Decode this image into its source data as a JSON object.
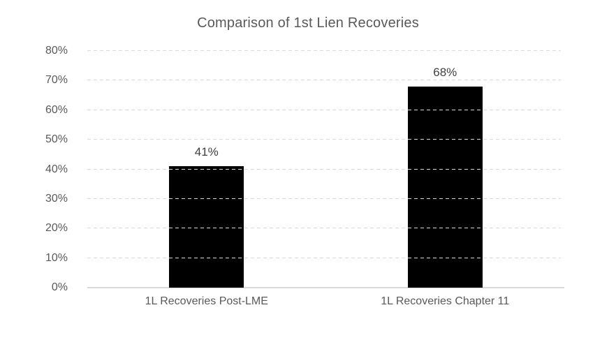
{
  "title": "Comparison of 1st Lien Recoveries",
  "colors": {
    "background": "#ffffff",
    "bar": "#000000",
    "title_text": "#595959",
    "axis_label_text": "#595959",
    "data_label_text": "#404040",
    "gridline": "#d9d9d9",
    "axis_line": "#d9d9d9"
  },
  "chart_data": {
    "type": "bar",
    "title": "Comparison of 1st Lien Recoveries",
    "categories": [
      "1L Recoveries Post-LME",
      "1L Recoveries Chapter 11"
    ],
    "values": [
      41,
      68
    ],
    "data_labels": [
      "41%",
      "68%"
    ],
    "xlabel": "",
    "ylabel": "",
    "ylim": [
      0,
      80
    ],
    "ytick_interval": 10,
    "ytick_labels": [
      "0%",
      "10%",
      "20%",
      "30%",
      "40%",
      "50%",
      "60%",
      "70%",
      "80%"
    ],
    "grid": "horizontal-dashed",
    "legend_position": "none",
    "bar_color": "#000000"
  }
}
